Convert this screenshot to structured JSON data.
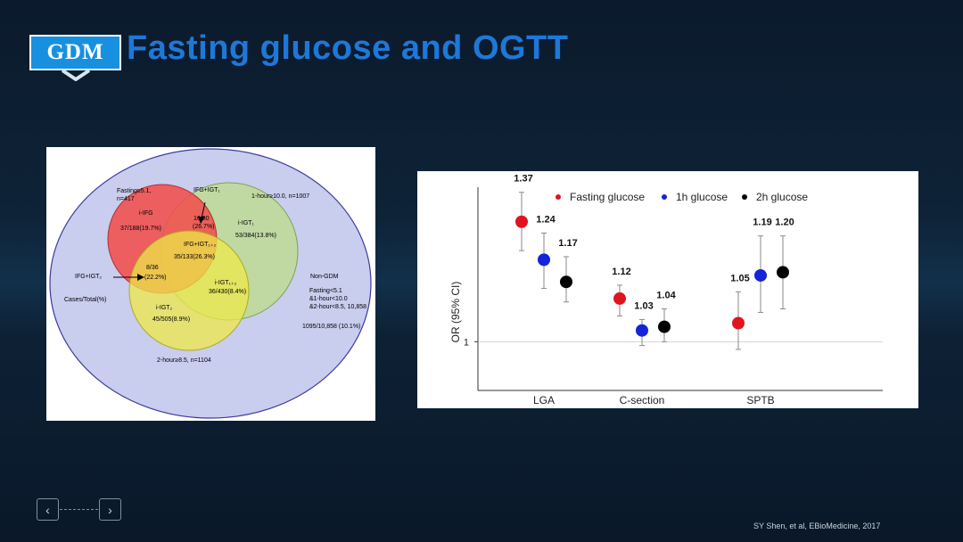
{
  "header": {
    "badge": "GDM",
    "title": "Fasting glucose and OGTT"
  },
  "venn": {
    "fasting_label": "Fasting≥5.1,",
    "fasting_n": "n=417",
    "ifg_igt1_label": "IFG+IGT₁",
    "one_hour_label": "1-hour≥10.0,  n=1007",
    "i_ifg_label": "i-IFG",
    "i_ifg_value": "37/188(19.7%)",
    "ifg_igt1_value": "16/60",
    "ifg_igt1_pct": "(26.7%)",
    "i_igt1_label": "i-IGT₁",
    "i_igt1_value": "53/384(13.8%)",
    "ifg_igt12_label": "IFG+IGT₁₊₂",
    "ifg_igt12_value": "35/133(26.3%)",
    "ifg_igt2_label": "IFG+IGT₂",
    "ifg_igt2_value": "8/36",
    "ifg_igt2_pct": "(22.2%)",
    "non_gdm_label": "Non-GDM",
    "cases_total_label": "Cases/Total(%)",
    "i_igt12_label": "i-IGT₁₊₂",
    "i_igt12_value": "36/430(8.4%)",
    "non_gdm_crit1": "Fasting<5.1",
    "non_gdm_crit2": "&1-hour<10.0",
    "non_gdm_crit3": "&2-hour<8.5,  10,858",
    "i_igt2_label": "i-IGT₂",
    "i_igt2_value": "45/505(8.9%)",
    "non_gdm_value": "1095/10,858  (10.1%)",
    "two_hour_label": "2-hour≥8.5,  n=1104"
  },
  "chart_data": {
    "type": "scatter",
    "title": "",
    "ylabel": "OR (95% CI)",
    "xlabel": "",
    "y_scale": "log",
    "y_tick_labels": [
      "1"
    ],
    "reference_line": 1,
    "categories": [
      "LGA",
      "C-section",
      "SPTB"
    ],
    "series": [
      {
        "name": "Fasting glucose",
        "color": "#e0141e",
        "values": [
          1.37,
          1.12,
          1.05
        ],
        "ci_low": [
          1.27,
          1.07,
          0.98
        ],
        "ci_high": [
          1.48,
          1.16,
          1.14
        ]
      },
      {
        "name": "1h glucose",
        "color": "#1424d8",
        "values": [
          1.24,
          1.03,
          1.19
        ],
        "ci_low": [
          1.15,
          0.99,
          1.08
        ],
        "ci_high": [
          1.33,
          1.06,
          1.32
        ]
      },
      {
        "name": "2h glucose",
        "color": "#000000",
        "values": [
          1.17,
          1.04,
          1.2
        ],
        "ci_low": [
          1.11,
          1.0,
          1.09
        ],
        "ci_high": [
          1.25,
          1.09,
          1.32
        ]
      }
    ],
    "legend_position": "top",
    "grid": false
  },
  "footer": {
    "citation": "SY Shen, et al, EBioMedicine, 2017",
    "prev_icon": "chevron-left-icon",
    "next_icon": "chevron-right-icon",
    "prev_glyph": "‹",
    "next_glyph": "›"
  }
}
